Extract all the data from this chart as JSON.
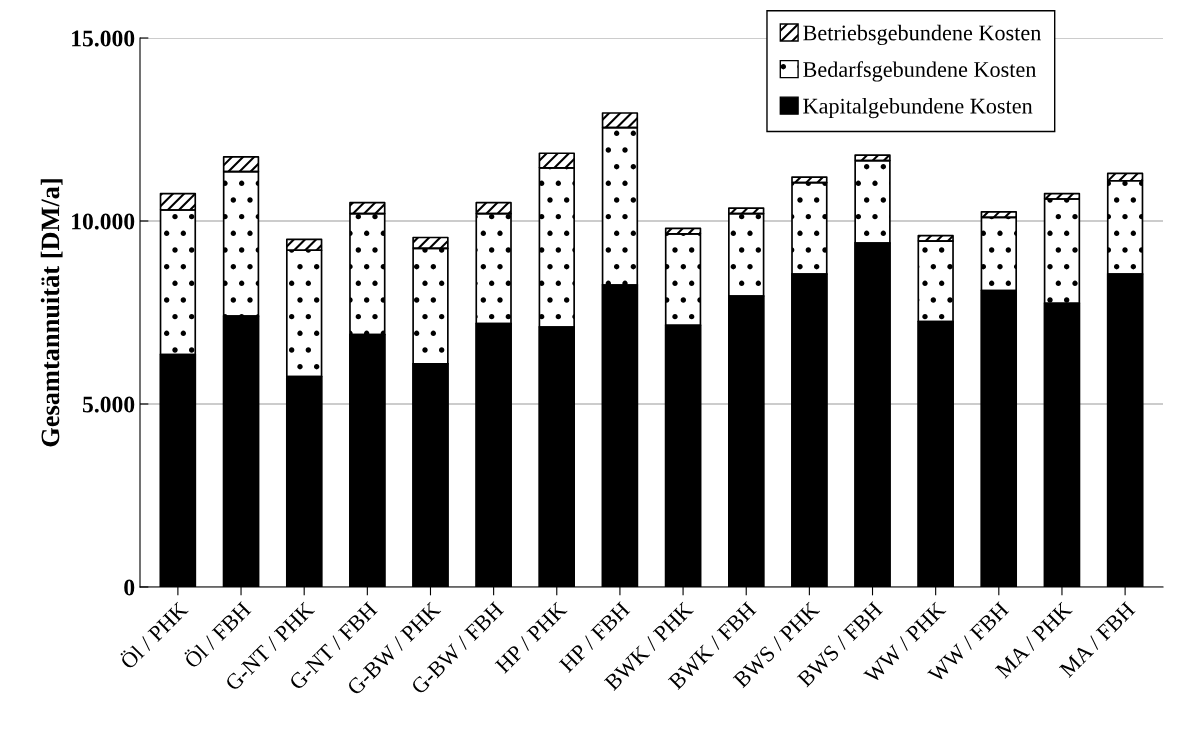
{
  "chart_data": {
    "type": "bar",
    "stacked": true,
    "ylabel": "Gesamtannuität [DM/a]",
    "categories": [
      "Öl / PHK",
      "Öl / FBH",
      "G-NT / PHK",
      "G-NT / FBH",
      "G-BW / PHK",
      "G-BW / FBH",
      "HP / PHK",
      "HP / FBH",
      "BWK / PHK",
      "BWK / FBH",
      "BWS / PHK",
      "BWS / FBH",
      "WW / PHK",
      "WW / FBH",
      "MA / PHK",
      "MA / FBH"
    ],
    "series": [
      {
        "name": "Kapitalgebundene Kosten",
        "color": "#000000",
        "values": [
          6350,
          7400,
          5750,
          6900,
          6100,
          7200,
          7100,
          8250,
          7150,
          7950,
          8550,
          9400,
          7250,
          8100,
          7750,
          8550
        ]
      },
      {
        "name": "Bedarfsgebundene Kosten",
        "color": "#ffffff",
        "values": [
          3950,
          3950,
          3450,
          3300,
          3150,
          3000,
          4350,
          4300,
          2500,
          2250,
          2500,
          2250,
          2200,
          2000,
          2850,
          2550
        ]
      },
      {
        "name": "Betriebsgebundene Kosten",
        "color": "#ffffff",
        "values": [
          450,
          400,
          300,
          300,
          300,
          300,
          400,
          400,
          150,
          150,
          150,
          150,
          150,
          150,
          150,
          200
        ]
      }
    ],
    "ylim": [
      0,
      15000
    ],
    "yticks": [
      {
        "value": 0,
        "label": "0"
      },
      {
        "value": 5000,
        "label": "5.000"
      },
      {
        "value": 10000,
        "label": "10.000"
      },
      {
        "value": 15000,
        "label": "15.000"
      }
    ],
    "grid": "y",
    "legend": "top right"
  }
}
